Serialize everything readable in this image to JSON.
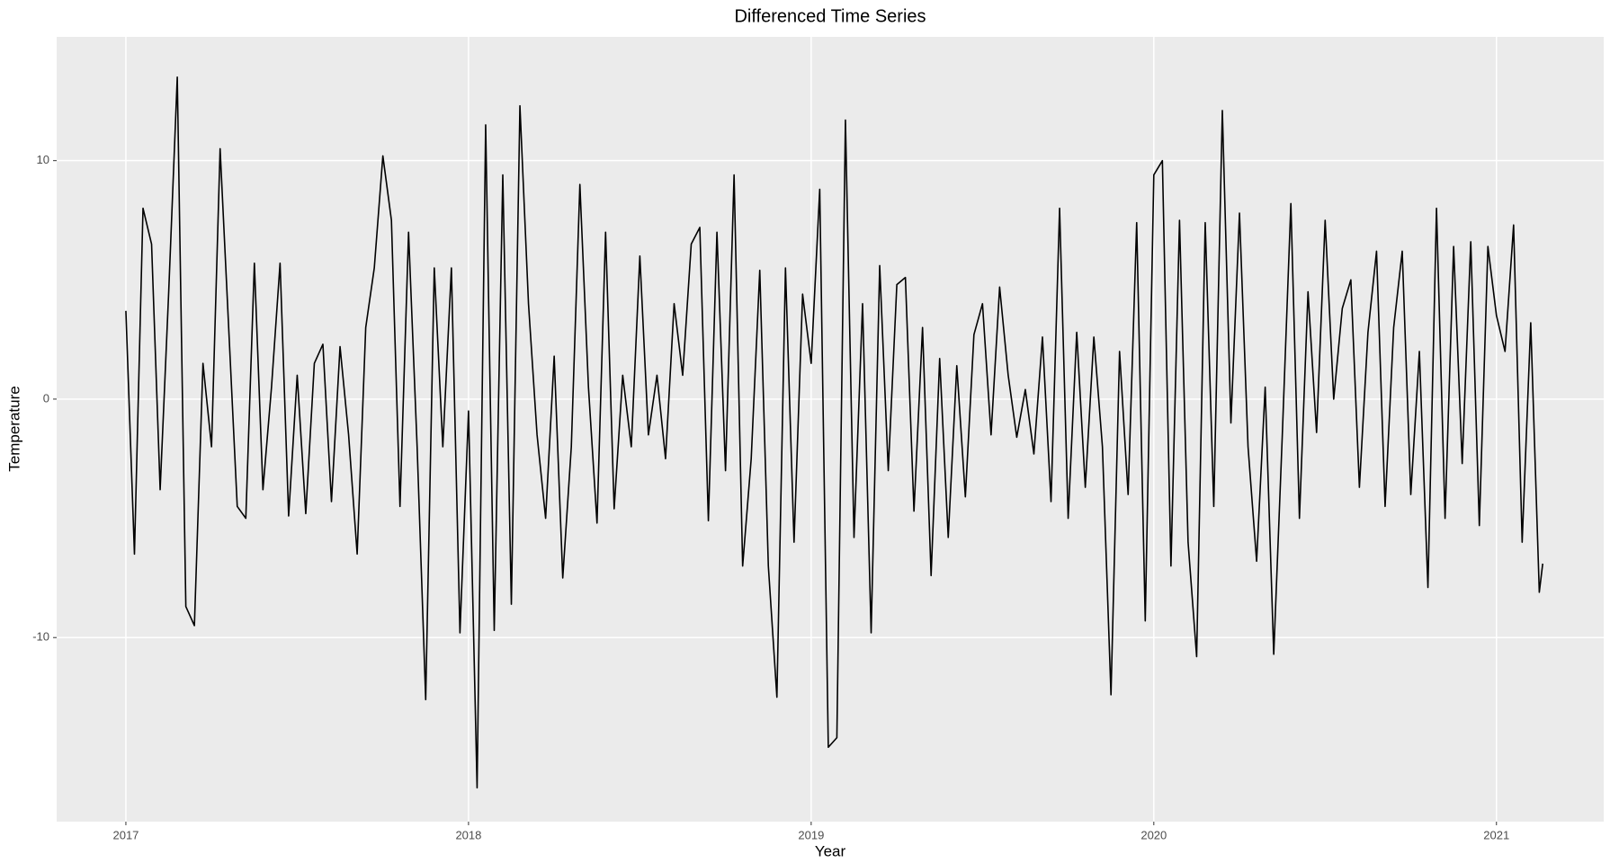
{
  "chart_data": {
    "type": "line",
    "title": "Differenced Time Series",
    "x_label": "Year",
    "y_label": "Temperature",
    "x": [
      2017.0,
      2017.025,
      2017.05,
      2017.075,
      2017.1,
      2017.125,
      2017.15,
      2017.175,
      2017.2,
      2017.225,
      2017.25,
      2017.275,
      2017.3,
      2017.325,
      2017.35,
      2017.375,
      2017.4,
      2017.425,
      2017.45,
      2017.475,
      2017.5,
      2017.525,
      2017.55,
      2017.575,
      2017.6,
      2017.625,
      2017.65,
      2017.675,
      2017.7,
      2017.725,
      2017.75,
      2017.775,
      2017.8,
      2017.825,
      2017.85,
      2017.875,
      2017.9,
      2017.925,
      2017.95,
      2017.975,
      2018.0,
      2018.025,
      2018.05,
      2018.075,
      2018.1,
      2018.125,
      2018.15,
      2018.175,
      2018.2,
      2018.225,
      2018.25,
      2018.275,
      2018.3,
      2018.325,
      2018.35,
      2018.375,
      2018.4,
      2018.425,
      2018.45,
      2018.475,
      2018.5,
      2018.525,
      2018.55,
      2018.575,
      2018.6,
      2018.625,
      2018.65,
      2018.675,
      2018.7,
      2018.725,
      2018.75,
      2018.775,
      2018.8,
      2018.825,
      2018.85,
      2018.875,
      2018.9,
      2018.925,
      2018.95,
      2018.975,
      2019.0,
      2019.025,
      2019.05,
      2019.075,
      2019.1,
      2019.125,
      2019.15,
      2019.175,
      2019.2,
      2019.225,
      2019.25,
      2019.275,
      2019.3,
      2019.325,
      2019.35,
      2019.375,
      2019.4,
      2019.425,
      2019.45,
      2019.475,
      2019.5,
      2019.525,
      2019.55,
      2019.575,
      2019.6,
      2019.625,
      2019.65,
      2019.675,
      2019.7,
      2019.725,
      2019.75,
      2019.775,
      2019.8,
      2019.825,
      2019.85,
      2019.875,
      2019.9,
      2019.925,
      2019.95,
      2019.975,
      2020.0,
      2020.025,
      2020.05,
      2020.075,
      2020.1,
      2020.125,
      2020.15,
      2020.175,
      2020.2,
      2020.225,
      2020.25,
      2020.275,
      2020.3,
      2020.325,
      2020.35,
      2020.375,
      2020.4,
      2020.425,
      2020.45,
      2020.475,
      2020.5,
      2020.525,
      2020.55,
      2020.575,
      2020.6,
      2020.625,
      2020.65,
      2020.675,
      2020.7,
      2020.725,
      2020.75,
      2020.775,
      2020.8,
      2020.825,
      2020.85,
      2020.875,
      2020.9,
      2020.925,
      2020.95,
      2020.975,
      2021.0,
      2021.025,
      2021.05,
      2021.075,
      2021.1,
      2021.125,
      2021.135
    ],
    "values": [
      3.7,
      -6.5,
      8,
      6.5,
      -3.8,
      4.5,
      13.5,
      -8.7,
      -9.5,
      1.5,
      -2,
      10.5,
      3,
      -4.5,
      -5,
      5.7,
      -3.8,
      0.5,
      5.7,
      -4.9,
      1,
      -4.8,
      1.5,
      2.3,
      -4.3,
      2.2,
      -1.5,
      -6.5,
      3,
      5.5,
      10.2,
      7.5,
      -4.5,
      7,
      -2,
      -12.6,
      5.5,
      -2,
      5.5,
      -9.8,
      -0.5,
      -16.3,
      11.5,
      -9.7,
      9.4,
      -8.6,
      12.3,
      4,
      -1.5,
      -5,
      1.8,
      -7.5,
      -2,
      9,
      0.5,
      -5.2,
      7,
      -4.6,
      1,
      -2,
      6,
      -1.5,
      1,
      -2.5,
      4,
      1,
      6.5,
      7.2,
      -5.1,
      7,
      -3,
      9.4,
      -7,
      -2.5,
      5.4,
      -7,
      -12.5,
      5.5,
      -6,
      4.4,
      1.5,
      8.8,
      -14.6,
      -14.2,
      11.7,
      -5.8,
      4,
      -9.8,
      5.6,
      -3,
      4.8,
      5.1,
      -4.7,
      3,
      -7.4,
      1.7,
      -5.8,
      1.4,
      -4.1,
      2.7,
      4,
      -1.5,
      4.7,
      1,
      -1.6,
      0.4,
      -2.3,
      2.6,
      -4.3,
      8,
      -5,
      2.8,
      -3.7,
      2.6,
      -2,
      -12.4,
      2,
      -4,
      7.4,
      -9.3,
      9.4,
      10,
      -7,
      7.5,
      -6,
      -10.8,
      7.4,
      -4.5,
      12.1,
      -1,
      7.8,
      -2,
      -6.8,
      0.5,
      -10.7,
      -1.5,
      8.2,
      -5,
      4.5,
      -1.4,
      7.5,
      0,
      3.8,
      5,
      -3.7,
      2.8,
      6.2,
      -4.5,
      3,
      6.2,
      -4,
      2,
      -7.9,
      8,
      -5,
      6.4,
      -2.7,
      6.6,
      -5.3,
      6.4,
      3.5,
      2,
      7.3,
      -6,
      3.2,
      -8.1,
      -6.9
    ],
    "color": "#000000",
    "xlim": [
      2016.798,
      2021.313
    ],
    "xticks": [
      2017,
      2018,
      2019,
      2020,
      2021
    ],
    "ylim": [
      -17.72,
      15.19
    ],
    "yticks": [
      -10,
      0,
      10
    ],
    "grid": true
  }
}
